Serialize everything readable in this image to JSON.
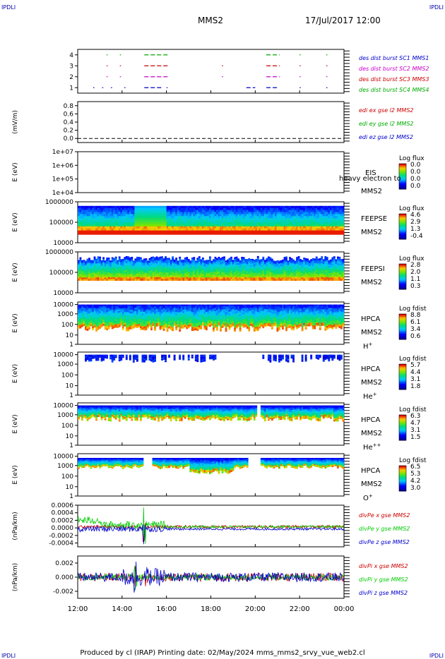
{
  "corner_label": "IPDLI",
  "header": {
    "spacecraft": "MMS2",
    "datetime": "17/Jul/2017 12:00"
  },
  "footer": "Produced by cl (IRAP)   Printing date: 02/May/2024   mms_mms2_srvy_vue_web2.cl",
  "chart_data": [
    {
      "type": "line",
      "title": "",
      "ylabel": "",
      "ylim": [
        0.5,
        4.5
      ],
      "yticks": [
        "1",
        "2",
        "3",
        "4"
      ],
      "x": [
        12,
        24
      ],
      "xlabel": "",
      "xticks": [
        "12:00",
        "14:00",
        "16:00",
        "18:00",
        "20:00",
        "22:00",
        "00:00"
      ],
      "series": [
        {
          "name": "des dist burst SC1 MMS1",
          "color": "#0000cc",
          "level": 1
        },
        {
          "name": "des dist burst SC2 MMS2",
          "color": "#cc00cc",
          "level": 2
        },
        {
          "name": "des dist burst SC3 MMS3",
          "color": "#cc0000",
          "level": 3
        },
        {
          "name": "des dist burst SC4 MMS4",
          "color": "#00aa00",
          "level": 4
        }
      ]
    },
    {
      "type": "line",
      "ylabel": "(mV/m)",
      "ylim": [
        -0.1,
        0.9
      ],
      "yticks": [
        "0.0",
        "0.2",
        "0.4",
        "0.6",
        "0.8"
      ],
      "series": [
        {
          "name": "edi ex gse l2 MMS2",
          "color": "#cc0000"
        },
        {
          "name": "edi ey gse l2 MMS2",
          "color": "#00aa00"
        },
        {
          "name": "edi ez gse l2 MMS2",
          "color": "#0000cc"
        }
      ],
      "reference_line": 0
    },
    {
      "type": "heatmap",
      "ylabel": "E (eV)",
      "scale": "log",
      "yticks": [
        "1e+04",
        "1e+05",
        "1e+06",
        "1e+07"
      ],
      "labels": [
        "EIS",
        "MMS2"
      ],
      "overlay_text": "heavy electron to",
      "colorbar": {
        "title": "Log flux",
        "ticks": [
          "0.0",
          "0.0",
          "0.0",
          "0.0"
        ]
      }
    },
    {
      "type": "heatmap",
      "ylabel": "E (eV)",
      "scale": "log",
      "yticks": [
        "10000",
        "100000",
        "1000000"
      ],
      "labels": [
        "FEEPSE",
        "MMS2"
      ],
      "colorbar": {
        "title": "Log flux",
        "ticks": [
          "4.6",
          "2.9",
          "1.3",
          "-0.4"
        ]
      }
    },
    {
      "type": "heatmap",
      "ylabel": "E (eV)",
      "scale": "log",
      "yticks": [
        "10000",
        "100000",
        "1000000"
      ],
      "labels": [
        "FEEPSI",
        "MMS2"
      ],
      "colorbar": {
        "title": "Log flux",
        "ticks": [
          "2.8",
          "2.0",
          "1.1",
          "0.3"
        ]
      }
    },
    {
      "type": "heatmap",
      "ylabel": "E (eV)",
      "scale": "log",
      "yticks": [
        "1",
        "10",
        "100",
        "1000",
        "10000"
      ],
      "labels": [
        "HPCA",
        "MMS2",
        "H+"
      ],
      "colorbar": {
        "title": "Log fdist",
        "ticks": [
          "8.8",
          "6.1",
          "3.4",
          "0.6"
        ]
      }
    },
    {
      "type": "heatmap",
      "ylabel": "E (eV)",
      "scale": "log",
      "yticks": [
        "1",
        "10",
        "100",
        "1000",
        "10000"
      ],
      "labels": [
        "HPCA",
        "MMS2",
        "He+"
      ],
      "colorbar": {
        "title": "Log fdist",
        "ticks": [
          "5.7",
          "4.4",
          "3.1",
          "1.8"
        ]
      }
    },
    {
      "type": "heatmap",
      "ylabel": "E (eV)",
      "scale": "log",
      "yticks": [
        "1",
        "10",
        "100",
        "1000",
        "10000"
      ],
      "labels": [
        "HPCA",
        "MMS2",
        "He++"
      ],
      "colorbar": {
        "title": "Log fdist",
        "ticks": [
          "6.3",
          "4.7",
          "3.1",
          "1.5"
        ]
      }
    },
    {
      "type": "heatmap",
      "ylabel": "E (eV)",
      "scale": "log",
      "yticks": [
        "1",
        "10",
        "100",
        "1000",
        "10000"
      ],
      "labels": [
        "HPCA",
        "MMS2",
        "O+"
      ],
      "colorbar": {
        "title": "Log fdist",
        "ticks": [
          "6.5",
          "5.3",
          "4.2",
          "3.0"
        ]
      }
    },
    {
      "type": "line",
      "ylabel": "(nPa/km)",
      "ylim": [
        -0.0005,
        0.0006
      ],
      "yticks": [
        "-0.0004",
        "-0.0002",
        "0.0000",
        "0.0002",
        "0.0004",
        "0.0006"
      ],
      "series": [
        {
          "name": "divPe x gse MMS2",
          "color": "#cc0000"
        },
        {
          "name": "divPe y gse MMS2",
          "color": "#00cc00"
        },
        {
          "name": "divPe z gse MMS2",
          "color": "#0000cc"
        }
      ]
    },
    {
      "type": "line",
      "ylabel": "(nPa/km)",
      "ylim": [
        -0.003,
        0.003
      ],
      "yticks": [
        "-0.002",
        "0.000",
        "0.002"
      ],
      "series": [
        {
          "name": "divPi x gse MMS2",
          "color": "#cc0000"
        },
        {
          "name": "divPi y gse MMS2",
          "color": "#00cc00"
        },
        {
          "name": "divPi z gse MMS2",
          "color": "#0000cc"
        }
      ]
    }
  ]
}
